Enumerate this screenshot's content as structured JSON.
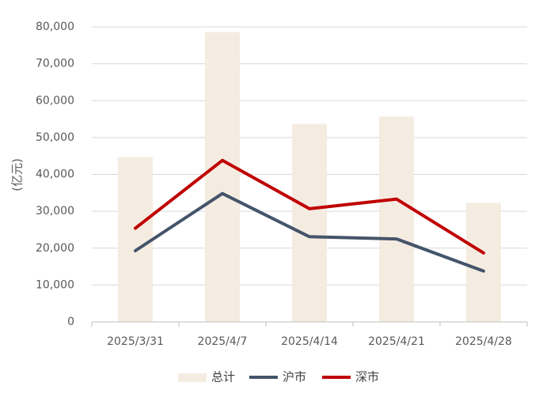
{
  "chart_data": {
    "type": "bar+line",
    "ylabel": "(亿元)",
    "ylim": [
      0,
      80000
    ],
    "yticks": [
      "0",
      "10,000",
      "20,000",
      "30,000",
      "40,000",
      "50,000",
      "60,000",
      "70,000",
      "80,000"
    ],
    "grid": true,
    "legend_position": "bottom",
    "categories": [
      "2025/3/31",
      "2025/4/7",
      "2025/4/14",
      "2025/4/21",
      "2025/4/28"
    ],
    "series": [
      {
        "name": "总计",
        "type": "bar",
        "color": "#f5ece1",
        "values": [
          44700,
          78600,
          53700,
          55700,
          32300
        ]
      },
      {
        "name": "沪市",
        "type": "line",
        "color": "#44546a",
        "values": [
          19300,
          34800,
          23100,
          22500,
          13800
        ]
      },
      {
        "name": "深市",
        "type": "line",
        "color": "#c00000",
        "values": [
          25400,
          43800,
          30700,
          33300,
          18700
        ]
      }
    ]
  }
}
